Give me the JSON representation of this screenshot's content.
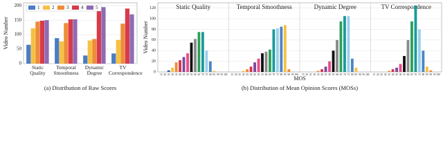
{
  "chart_data": [
    {
      "type": "grouped-bar",
      "ylabel": "Video Number",
      "caption": "(a) Distribution of Raw Scores",
      "categories": [
        "Static Quality",
        "Temporal Smoothness",
        "Dynamic Degree",
        "TV Correspondence"
      ],
      "series": [
        {
          "name": "1",
          "color": "#4a7cc4",
          "values": [
            65,
            88,
            28,
            35
          ]
        },
        {
          "name": "2",
          "color": "#f6c142",
          "values": [
            122,
            77,
            80,
            82
          ]
        },
        {
          "name": "3",
          "color": "#ee8c3a",
          "values": [
            145,
            140,
            85,
            138
          ]
        },
        {
          "name": "4",
          "color": "#d93a4a",
          "values": [
            148,
            153,
            200,
            190
          ]
        },
        {
          "name": "5",
          "color": "#8f6bb5",
          "values": [
            150,
            153,
            195,
            170
          ]
        }
      ],
      "ylim": [
        0,
        210
      ],
      "yticks": [
        0,
        50,
        100,
        150,
        200
      ],
      "grid": true,
      "legend": "upper left"
    },
    {
      "type": "bar-panels",
      "xlabel": "MOS",
      "ylabel": "Video Number",
      "caption": "(b) Distribution of Mean Opinion Scores (MOSs)",
      "categories": [
        "15",
        "20",
        "25",
        "30",
        "35",
        "40",
        "45",
        "50",
        "55",
        "60",
        "65",
        "70",
        "75",
        "80",
        "85",
        "90",
        "95",
        "100"
      ],
      "colors": [
        "#9fd3ea",
        "#4a86c5",
        "#2c5fa8",
        "#f5c242",
        "#ef8a33",
        "#d6334a",
        "#7b4a9c",
        "#e84b8a",
        "#111111",
        "#8a8a8a",
        "#2ca05a",
        "#1a9a9a",
        "#9ad0ec",
        "#4a86c5",
        "#f5c242",
        "#ef8a33",
        "#d6334a",
        "#8f6bb5"
      ],
      "ylim": [
        0,
        130
      ],
      "yticks": [
        0,
        20,
        40,
        60,
        80,
        100,
        120
      ],
      "grid": true,
      "panels": [
        {
          "title": "Static Quality",
          "values": [
            0,
            0,
            3,
            8,
            18,
            22,
            28,
            35,
            55,
            62,
            75,
            75,
            40,
            20,
            2,
            0,
            0,
            0
          ]
        },
        {
          "title": "Temporal Smoothness",
          "values": [
            0,
            0,
            0,
            2,
            5,
            10,
            18,
            25,
            35,
            38,
            42,
            80,
            82,
            85,
            88,
            5,
            0,
            0
          ]
        },
        {
          "title": "Dynamic Degree",
          "values": [
            0,
            0,
            0,
            0,
            2,
            5,
            10,
            20,
            40,
            60,
            95,
            105,
            105,
            25,
            8,
            0,
            0,
            0
          ]
        },
        {
          "title": "TV Correspondence",
          "values": [
            0,
            0,
            0,
            0,
            2,
            5,
            8,
            15,
            30,
            60,
            95,
            125,
            80,
            40,
            10,
            3,
            0,
            0
          ]
        }
      ]
    }
  ]
}
